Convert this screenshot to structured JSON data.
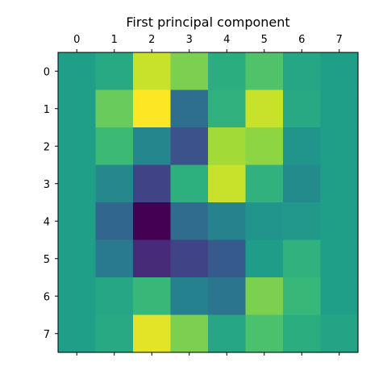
{
  "chart_data": {
    "type": "heatmap",
    "title": "First principal component",
    "colormap": "viridis",
    "x_tick_labels": [
      "0",
      "1",
      "2",
      "3",
      "4",
      "5",
      "6",
      "7"
    ],
    "y_tick_labels": [
      "0",
      "1",
      "2",
      "3",
      "4",
      "5",
      "6",
      "7"
    ],
    "x_axis_position": "top",
    "grid": false,
    "colorbar": false,
    "normalized_values": [
      [
        0.56,
        0.6,
        0.92,
        0.8,
        0.62,
        0.72,
        0.59,
        0.56
      ],
      [
        0.56,
        0.77,
        1.0,
        0.36,
        0.64,
        0.92,
        0.6,
        0.56
      ],
      [
        0.56,
        0.68,
        0.46,
        0.25,
        0.86,
        0.83,
        0.52,
        0.56
      ],
      [
        0.56,
        0.47,
        0.2,
        0.63,
        0.92,
        0.64,
        0.48,
        0.56
      ],
      [
        0.56,
        0.33,
        0.0,
        0.35,
        0.45,
        0.52,
        0.53,
        0.56
      ],
      [
        0.56,
        0.41,
        0.12,
        0.2,
        0.28,
        0.55,
        0.64,
        0.56
      ],
      [
        0.56,
        0.59,
        0.67,
        0.44,
        0.39,
        0.8,
        0.67,
        0.56
      ],
      [
        0.56,
        0.6,
        0.96,
        0.8,
        0.59,
        0.71,
        0.62,
        0.58
      ]
    ]
  }
}
